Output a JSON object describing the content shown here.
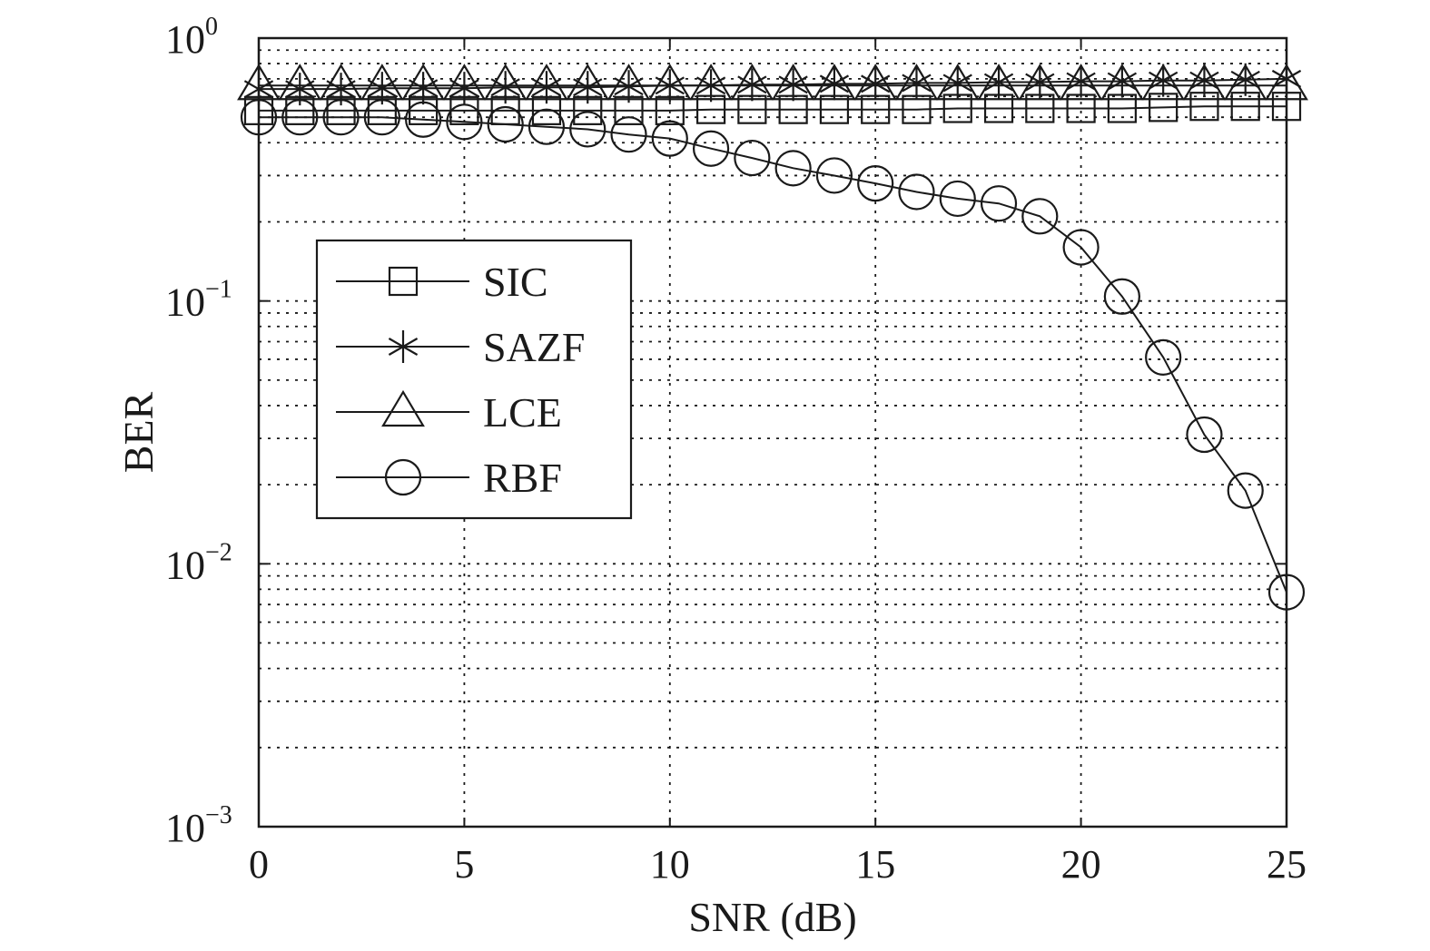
{
  "chart_data": {
    "type": "line",
    "xlabel": "SNR (dB)",
    "ylabel": "BER",
    "x_scale": "linear",
    "y_scale": "log",
    "xlim": [
      0,
      25
    ],
    "ylim": [
      0.001,
      1
    ],
    "x_ticks": [
      0,
      5,
      10,
      15,
      20,
      25
    ],
    "x_tick_labels": [
      "0",
      "5",
      "10",
      "15",
      "20",
      "25"
    ],
    "y_ticks": [
      {
        "value": 1,
        "base": "10",
        "exp": "0"
      },
      {
        "value": 0.1,
        "base": "10",
        "exp": "−1"
      },
      {
        "value": 0.01,
        "base": "10",
        "exp": "−2"
      },
      {
        "value": 0.001,
        "base": "10",
        "exp": "−3"
      }
    ],
    "grid": true,
    "legend_position": "middle-left",
    "x": [
      0,
      1,
      2,
      3,
      4,
      5,
      6,
      7,
      8,
      9,
      10,
      11,
      12,
      13,
      14,
      15,
      16,
      17,
      18,
      19,
      20,
      21,
      22,
      23,
      24,
      25
    ],
    "series": [
      {
        "name": "SIC",
        "marker": "square",
        "values": [
          0.53,
          0.53,
          0.53,
          0.53,
          0.53,
          0.53,
          0.53,
          0.53,
          0.53,
          0.53,
          0.53,
          0.535,
          0.535,
          0.535,
          0.535,
          0.535,
          0.535,
          0.54,
          0.54,
          0.54,
          0.54,
          0.54,
          0.545,
          0.55,
          0.55,
          0.55
        ]
      },
      {
        "name": "SAZF",
        "marker": "asterisk",
        "values": [
          0.64,
          0.64,
          0.64,
          0.645,
          0.645,
          0.645,
          0.65,
          0.65,
          0.65,
          0.655,
          0.66,
          0.66,
          0.665,
          0.665,
          0.67,
          0.67,
          0.675,
          0.675,
          0.68,
          0.68,
          0.685,
          0.685,
          0.69,
          0.69,
          0.695,
          0.7
        ]
      },
      {
        "name": "LCE",
        "marker": "triangle",
        "values": [
          0.66,
          0.66,
          0.66,
          0.66,
          0.66,
          0.66,
          0.66,
          0.66,
          0.66,
          0.66,
          0.66,
          0.66,
          0.66,
          0.66,
          0.66,
          0.66,
          0.66,
          0.66,
          0.66,
          0.66,
          0.66,
          0.66,
          0.66,
          0.66,
          0.66,
          0.66
        ]
      },
      {
        "name": "RBF",
        "marker": "circle",
        "values": [
          0.5,
          0.5,
          0.5,
          0.5,
          0.49,
          0.48,
          0.47,
          0.46,
          0.45,
          0.43,
          0.415,
          0.38,
          0.35,
          0.32,
          0.3,
          0.28,
          0.26,
          0.245,
          0.235,
          0.21,
          0.16,
          0.104,
          0.061,
          0.031,
          0.019,
          0.0078
        ]
      }
    ]
  }
}
